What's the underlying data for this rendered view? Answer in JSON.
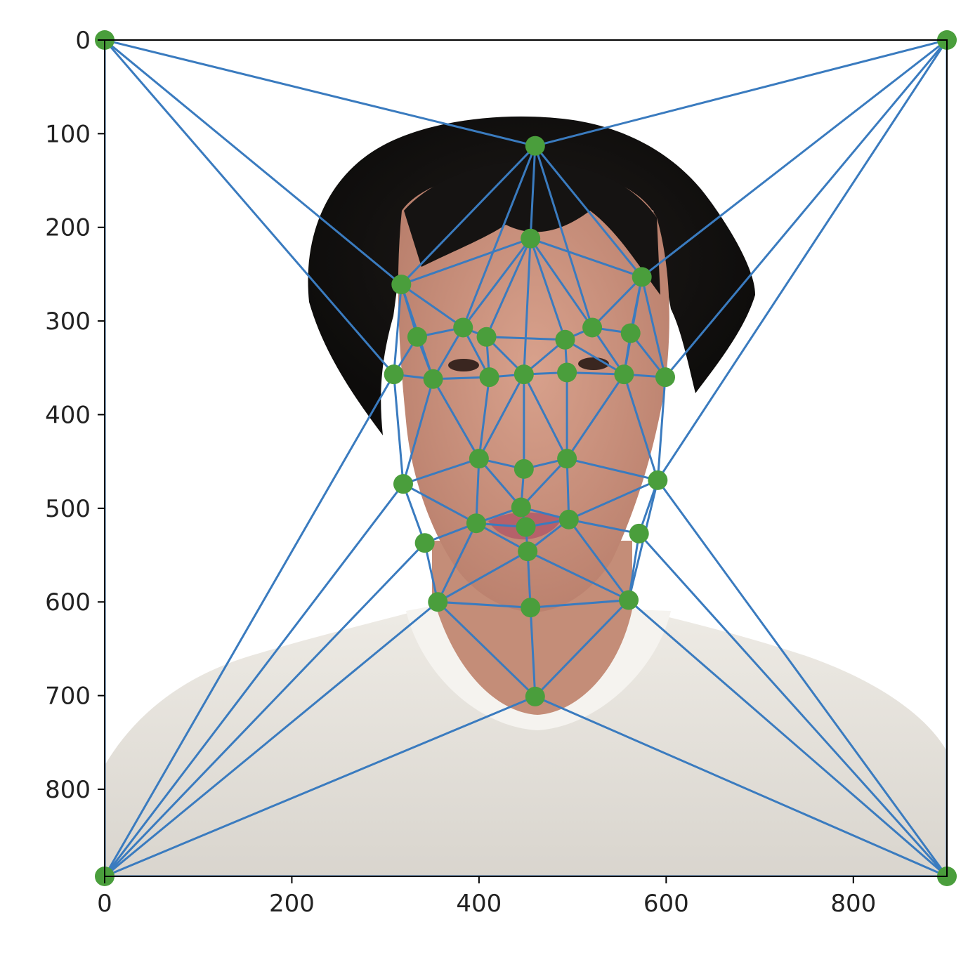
{
  "chart_data": {
    "type": "scatter",
    "background": "photo-of-person-face-and-white-tshirt",
    "xlim": [
      0,
      900
    ],
    "ylim": [
      893,
      0
    ],
    "y_inverted": true,
    "grid": false,
    "xticks": [
      0,
      200,
      400,
      600,
      800
    ],
    "yticks": [
      0,
      100,
      200,
      300,
      400,
      500,
      600,
      700,
      800
    ],
    "xtick_labels": [
      "0",
      "200",
      "400",
      "600",
      "800"
    ],
    "ytick_labels": [
      "0",
      "100",
      "200",
      "300",
      "400",
      "500",
      "600",
      "700",
      "800"
    ],
    "colors": {
      "edges": "#3a7bbf",
      "points": "#4a9e3c",
      "axes": "#000000"
    },
    "points": [
      [
        0,
        0
      ],
      [
        900,
        0
      ],
      [
        0,
        893
      ],
      [
        900,
        893
      ],
      [
        460,
        113
      ],
      [
        455,
        212
      ],
      [
        317,
        261
      ],
      [
        574,
        253
      ],
      [
        334,
        317
      ],
      [
        383,
        307
      ],
      [
        408,
        317
      ],
      [
        492,
        320
      ],
      [
        521,
        307
      ],
      [
        562,
        313
      ],
      [
        309,
        357
      ],
      [
        351,
        362
      ],
      [
        411,
        360
      ],
      [
        448,
        357
      ],
      [
        494,
        355
      ],
      [
        555,
        357
      ],
      [
        599,
        360
      ],
      [
        400,
        447
      ],
      [
        448,
        458
      ],
      [
        494,
        447
      ],
      [
        591,
        470
      ],
      [
        319,
        474
      ],
      [
        445,
        499
      ],
      [
        397,
        516
      ],
      [
        450,
        520
      ],
      [
        496,
        512
      ],
      [
        571,
        527
      ],
      [
        342,
        537
      ],
      [
        452,
        546
      ],
      [
        356,
        600
      ],
      [
        455,
        606
      ],
      [
        560,
        598
      ],
      [
        460,
        701
      ]
    ],
    "edges": [
      [
        0,
        4
      ],
      [
        1,
        4
      ],
      [
        0,
        6
      ],
      [
        0,
        14
      ],
      [
        0,
        2
      ],
      [
        1,
        7
      ],
      [
        1,
        20
      ],
      [
        1,
        24
      ],
      [
        1,
        3
      ],
      [
        2,
        14
      ],
      [
        2,
        25
      ],
      [
        2,
        31
      ],
      [
        2,
        33
      ],
      [
        2,
        36
      ],
      [
        2,
        3
      ],
      [
        3,
        36
      ],
      [
        3,
        35
      ],
      [
        3,
        30
      ],
      [
        3,
        24
      ],
      [
        4,
        6
      ],
      [
        4,
        5
      ],
      [
        4,
        7
      ],
      [
        4,
        9
      ],
      [
        4,
        12
      ],
      [
        5,
        6
      ],
      [
        5,
        9
      ],
      [
        5,
        10
      ],
      [
        5,
        17
      ],
      [
        5,
        11
      ],
      [
        5,
        12
      ],
      [
        5,
        7
      ],
      [
        6,
        8
      ],
      [
        6,
        9
      ],
      [
        6,
        14
      ],
      [
        6,
        15
      ],
      [
        7,
        12
      ],
      [
        7,
        13
      ],
      [
        7,
        20
      ],
      [
        7,
        19
      ],
      [
        8,
        9
      ],
      [
        8,
        15
      ],
      [
        8,
        14
      ],
      [
        9,
        10
      ],
      [
        9,
        16
      ],
      [
        9,
        15
      ],
      [
        10,
        11
      ],
      [
        10,
        16
      ],
      [
        10,
        17
      ],
      [
        11,
        12
      ],
      [
        11,
        17
      ],
      [
        11,
        18
      ],
      [
        11,
        19
      ],
      [
        12,
        13
      ],
      [
        12,
        19
      ],
      [
        13,
        19
      ],
      [
        13,
        20
      ],
      [
        14,
        15
      ],
      [
        14,
        25
      ],
      [
        15,
        16
      ],
      [
        15,
        21
      ],
      [
        15,
        25
      ],
      [
        16,
        17
      ],
      [
        16,
        21
      ],
      [
        17,
        18
      ],
      [
        17,
        21
      ],
      [
        17,
        22
      ],
      [
        17,
        23
      ],
      [
        18,
        19
      ],
      [
        18,
        23
      ],
      [
        19,
        20
      ],
      [
        19,
        23
      ],
      [
        19,
        24
      ],
      [
        20,
        24
      ],
      [
        21,
        22
      ],
      [
        21,
        25
      ],
      [
        21,
        27
      ],
      [
        21,
        26
      ],
      [
        22,
        23
      ],
      [
        22,
        26
      ],
      [
        23,
        24
      ],
      [
        23,
        26
      ],
      [
        23,
        29
      ],
      [
        24,
        29
      ],
      [
        24,
        30
      ],
      [
        24,
        35
      ],
      [
        25,
        27
      ],
      [
        25,
        31
      ],
      [
        26,
        27
      ],
      [
        26,
        28
      ],
      [
        26,
        29
      ],
      [
        27,
        28
      ],
      [
        27,
        31
      ],
      [
        27,
        33
      ],
      [
        27,
        32
      ],
      [
        28,
        29
      ],
      [
        28,
        32
      ],
      [
        29,
        30
      ],
      [
        29,
        32
      ],
      [
        29,
        35
      ],
      [
        30,
        35
      ],
      [
        31,
        33
      ],
      [
        32,
        33
      ],
      [
        32,
        34
      ],
      [
        32,
        35
      ],
      [
        33,
        34
      ],
      [
        33,
        36
      ],
      [
        34,
        35
      ],
      [
        34,
        36
      ],
      [
        35,
        36
      ]
    ]
  }
}
